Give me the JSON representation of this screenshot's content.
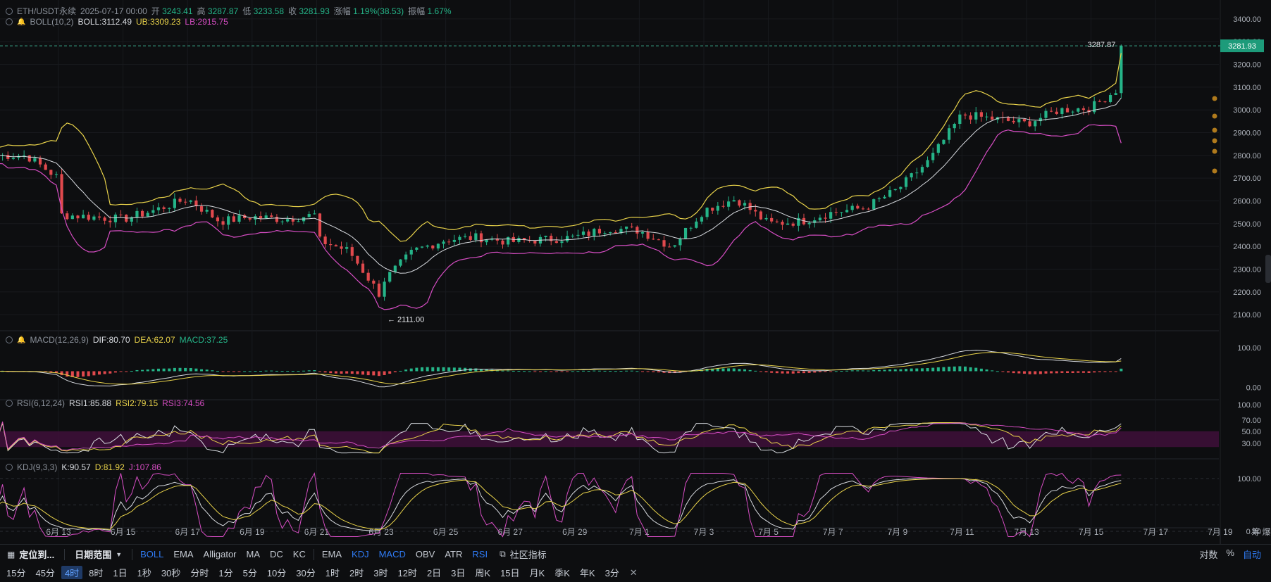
{
  "header": {
    "symbol": "ETH/USDT永续",
    "datetime": "2025-07-17 00:00",
    "open_label": "开",
    "open": "3243.41",
    "high_label": "高",
    "high": "3287.87",
    "low_label": "低",
    "low": "3233.58",
    "close_label": "收",
    "close": "3281.93",
    "change_label": "涨幅",
    "change": "1.19%(38.53)",
    "amplitude_label": "振幅",
    "amplitude": "1.67%"
  },
  "boll": {
    "name": "BOLL(10,2)",
    "mid": "BOLL:3112.49",
    "ub": "UB:3309.23",
    "lb": "LB:2915.75"
  },
  "macd": {
    "name": "MACD(12,26,9)",
    "dif": "DIF:80.70",
    "dea": "DEA:62.07",
    "macd": "MACD:37.25"
  },
  "rsi": {
    "name": "RSI(6,12,24)",
    "rsi1": "RSI1:85.88",
    "rsi2": "RSI2:79.15",
    "rsi3": "RSI3:74.56"
  },
  "kdj": {
    "name": "KDJ(9,3,3)",
    "k": "K:90.57",
    "d": "D:81.92",
    "j": "J:107.86"
  },
  "colors": {
    "up": "#25b488",
    "down": "#e0494d",
    "ub": "#e8d24a",
    "lb": "#d64dc3",
    "mid": "#d8dbe0",
    "accent": "#2f7bf5"
  },
  "chart_data": {
    "type": "candlestick",
    "x_ticks": [
      "6月 13",
      "6月 15",
      "6月 17",
      "6月 19",
      "6月 21",
      "6月 23",
      "6月 25",
      "6月 27",
      "6月 29",
      "7月 1",
      "7月 3",
      "7月 5",
      "7月 7",
      "7月 9",
      "7月 11",
      "7月 13",
      "7月 15",
      "7月 17",
      "7月 19"
    ],
    "x_end_label": "筹 爆",
    "price_ticks": [
      "3400.00",
      "3300.00",
      "3200.00",
      "3100.00",
      "3000.00",
      "2900.00",
      "2800.00",
      "2700.00",
      "2600.00",
      "2500.00",
      "2400.00",
      "2300.00",
      "2200.00",
      "2100.00"
    ],
    "ylim": [
      2060,
      3440
    ],
    "last_price": "3281.93",
    "max_label": "3287.87",
    "min_label": "← 2111.00",
    "close_path": [
      [
        "6月 12",
        2800
      ],
      [
        "6月 13",
        2700
      ],
      [
        "6月 13",
        2540
      ],
      [
        "6月 15",
        2520
      ],
      [
        "6月 16",
        2560
      ],
      [
        "6月 17",
        2610
      ],
      [
        "6月 18",
        2510
      ],
      [
        "6月 19",
        2530
      ],
      [
        "6月 20",
        2520
      ],
      [
        "6月 21",
        2540
      ],
      [
        "6月 21",
        2430
      ],
      [
        "6月 22",
        2380
      ],
      [
        "6月 23",
        2180
      ],
      [
        "6月 23",
        2240
      ],
      [
        "6月 24",
        2380
      ],
      [
        "6月 25",
        2430
      ],
      [
        "6月 26",
        2440
      ],
      [
        "6月 27",
        2420
      ],
      [
        "6月 28",
        2430
      ],
      [
        "6月 29",
        2440
      ],
      [
        "6月 30",
        2480
      ],
      [
        "7月 1",
        2470
      ],
      [
        "7月 2",
        2400
      ],
      [
        "7月 3",
        2560
      ],
      [
        "7月 4",
        2610
      ],
      [
        "7月 5",
        2500
      ],
      [
        "7月 6",
        2510
      ],
      [
        "7月 7",
        2550
      ],
      [
        "7月 8",
        2570
      ],
      [
        "7月 9",
        2650
      ],
      [
        "7月 10",
        2780
      ],
      [
        "7月 11",
        2980
      ],
      [
        "7月 12",
        2960
      ],
      [
        "7月 13",
        2940
      ],
      [
        "7月 14",
        3000
      ],
      [
        "7月 15",
        3010
      ],
      [
        "7月 16",
        3110
      ],
      [
        "7月 17",
        3282
      ]
    ],
    "macd_ticks": [
      "100.00",
      "0.00"
    ],
    "rsi_ticks": [
      "100.00",
      "70.00",
      "50.00",
      "30.00"
    ],
    "kdj_ticks": [
      "100.00",
      "0.00"
    ]
  },
  "toolbar": {
    "locate": "定位到...",
    "date_range": "日期范围",
    "indicators_main": [
      "BOLL",
      "EMA",
      "Alligator",
      "MA",
      "DC",
      "KC"
    ],
    "indicators_sub": [
      "EMA",
      "KDJ",
      "MACD",
      "OBV",
      "ATR",
      "RSI"
    ],
    "community": "社区指标",
    "right": [
      "对数",
      "%",
      "自动"
    ]
  },
  "timeframes": [
    "15分",
    "45分",
    "4时",
    "8时",
    "1日",
    "1秒",
    "30秒",
    "分时",
    "1分",
    "5分",
    "10分",
    "30分",
    "1时",
    "2时",
    "3时",
    "12时",
    "2日",
    "3日",
    "周K",
    "15日",
    "月K",
    "季K",
    "年K",
    "3分"
  ],
  "active_timeframe": "4时",
  "close_glyph": "✕"
}
